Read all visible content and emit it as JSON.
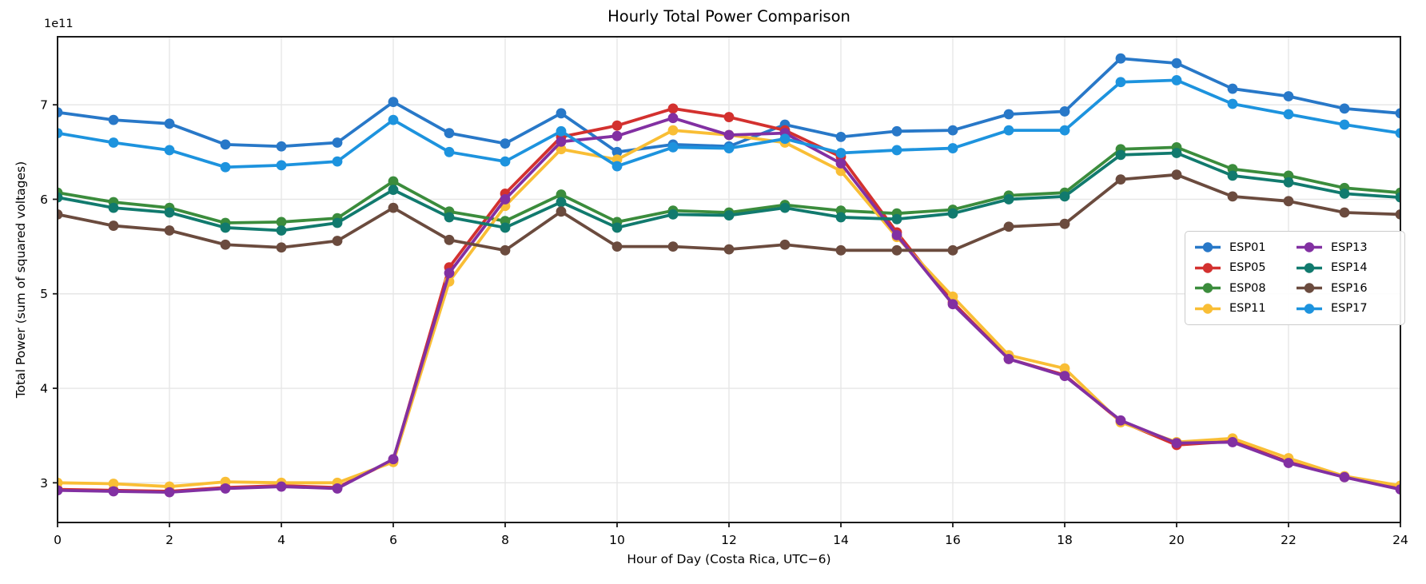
{
  "chart_data": {
    "type": "line",
    "title": "Hourly Total Power Comparison",
    "xlabel": "Hour of Day (Costa Rica, UTC−6)",
    "ylabel": "Total Power (sum of squared voltages)",
    "offset_text": "1e11",
    "value_unit_multiplier": "1e11",
    "xlim": [
      0,
      24
    ],
    "ylim": [
      2.58,
      7.72
    ],
    "xticks": [
      0,
      2,
      4,
      6,
      8,
      10,
      12,
      14,
      16,
      18,
      20,
      22,
      24
    ],
    "yticks": [
      3,
      4,
      5,
      6,
      7
    ],
    "grid": true,
    "legend_position": "center-right",
    "legend_columns": 2,
    "x": [
      0,
      1,
      2,
      3,
      4,
      5,
      6,
      7,
      8,
      9,
      10,
      11,
      12,
      13,
      14,
      15,
      16,
      17,
      18,
      19,
      20,
      21,
      22,
      23,
      24
    ],
    "series": [
      {
        "name": "ESP01",
        "color": "#2878C8",
        "values": [
          6.92,
          6.84,
          6.8,
          6.58,
          6.56,
          6.6,
          7.03,
          6.7,
          6.59,
          6.91,
          6.5,
          6.58,
          6.56,
          6.79,
          6.66,
          6.72,
          6.73,
          6.9,
          6.93,
          7.49,
          7.44,
          7.17,
          7.09,
          6.96,
          6.91
        ]
      },
      {
        "name": "ESP05",
        "color": "#D3312F",
        "values": [
          2.93,
          2.92,
          2.91,
          2.95,
          2.97,
          2.95,
          3.24,
          5.28,
          6.06,
          6.66,
          6.78,
          6.96,
          6.87,
          6.73,
          6.45,
          5.65,
          4.91,
          4.31,
          4.14,
          3.65,
          3.4,
          3.44,
          3.22,
          3.06,
          2.94
        ]
      },
      {
        "name": "ESP08",
        "color": "#3B8C3C",
        "values": [
          6.07,
          5.97,
          5.91,
          5.75,
          5.76,
          5.8,
          6.19,
          5.87,
          5.77,
          6.05,
          5.76,
          5.88,
          5.86,
          5.94,
          5.88,
          5.85,
          5.89,
          6.04,
          6.07,
          6.53,
          6.55,
          6.32,
          6.25,
          6.12,
          6.07
        ]
      },
      {
        "name": "ESP11",
        "color": "#F9BE35",
        "values": [
          3.0,
          2.99,
          2.96,
          3.01,
          3.0,
          3.0,
          3.22,
          5.13,
          5.93,
          6.53,
          6.42,
          6.73,
          6.68,
          6.6,
          6.3,
          5.6,
          4.97,
          4.35,
          4.21,
          3.64,
          3.43,
          3.47,
          3.26,
          3.07,
          2.97
        ]
      },
      {
        "name": "ESP13",
        "color": "#8230A2",
        "values": [
          2.92,
          2.91,
          2.9,
          2.94,
          2.96,
          2.94,
          3.25,
          5.22,
          6.0,
          6.61,
          6.67,
          6.86,
          6.68,
          6.7,
          6.38,
          5.62,
          4.89,
          4.31,
          4.13,
          3.66,
          3.42,
          3.43,
          3.21,
          3.06,
          2.93
        ]
      },
      {
        "name": "ESP14",
        "color": "#117A6E",
        "values": [
          6.02,
          5.91,
          5.86,
          5.7,
          5.67,
          5.75,
          6.1,
          5.81,
          5.7,
          5.97,
          5.7,
          5.84,
          5.83,
          5.91,
          5.81,
          5.79,
          5.85,
          6.0,
          6.03,
          6.47,
          6.49,
          6.25,
          6.18,
          6.06,
          6.02
        ]
      },
      {
        "name": "ESP16",
        "color": "#6B4B3E",
        "values": [
          5.84,
          5.72,
          5.67,
          5.52,
          5.49,
          5.56,
          5.91,
          5.57,
          5.46,
          5.87,
          5.5,
          5.5,
          5.47,
          5.52,
          5.46,
          5.46,
          5.46,
          5.71,
          5.74,
          6.21,
          6.26,
          6.03,
          5.98,
          5.86,
          5.84
        ]
      },
      {
        "name": "ESP17",
        "color": "#1D93DE",
        "values": [
          6.7,
          6.6,
          6.52,
          6.34,
          6.36,
          6.4,
          6.84,
          6.5,
          6.4,
          6.72,
          6.35,
          6.55,
          6.54,
          6.64,
          6.49,
          6.52,
          6.54,
          6.73,
          6.73,
          7.24,
          7.26,
          7.01,
          6.9,
          6.79,
          6.7
        ]
      }
    ],
    "style": {
      "grid_color": "#E6E6E6",
      "spine_color": "#1A1A1A",
      "tick_color": "#1A1A1A",
      "background": "#FFFFFF",
      "line_width": 3.8,
      "marker_radius": 6.4
    }
  }
}
